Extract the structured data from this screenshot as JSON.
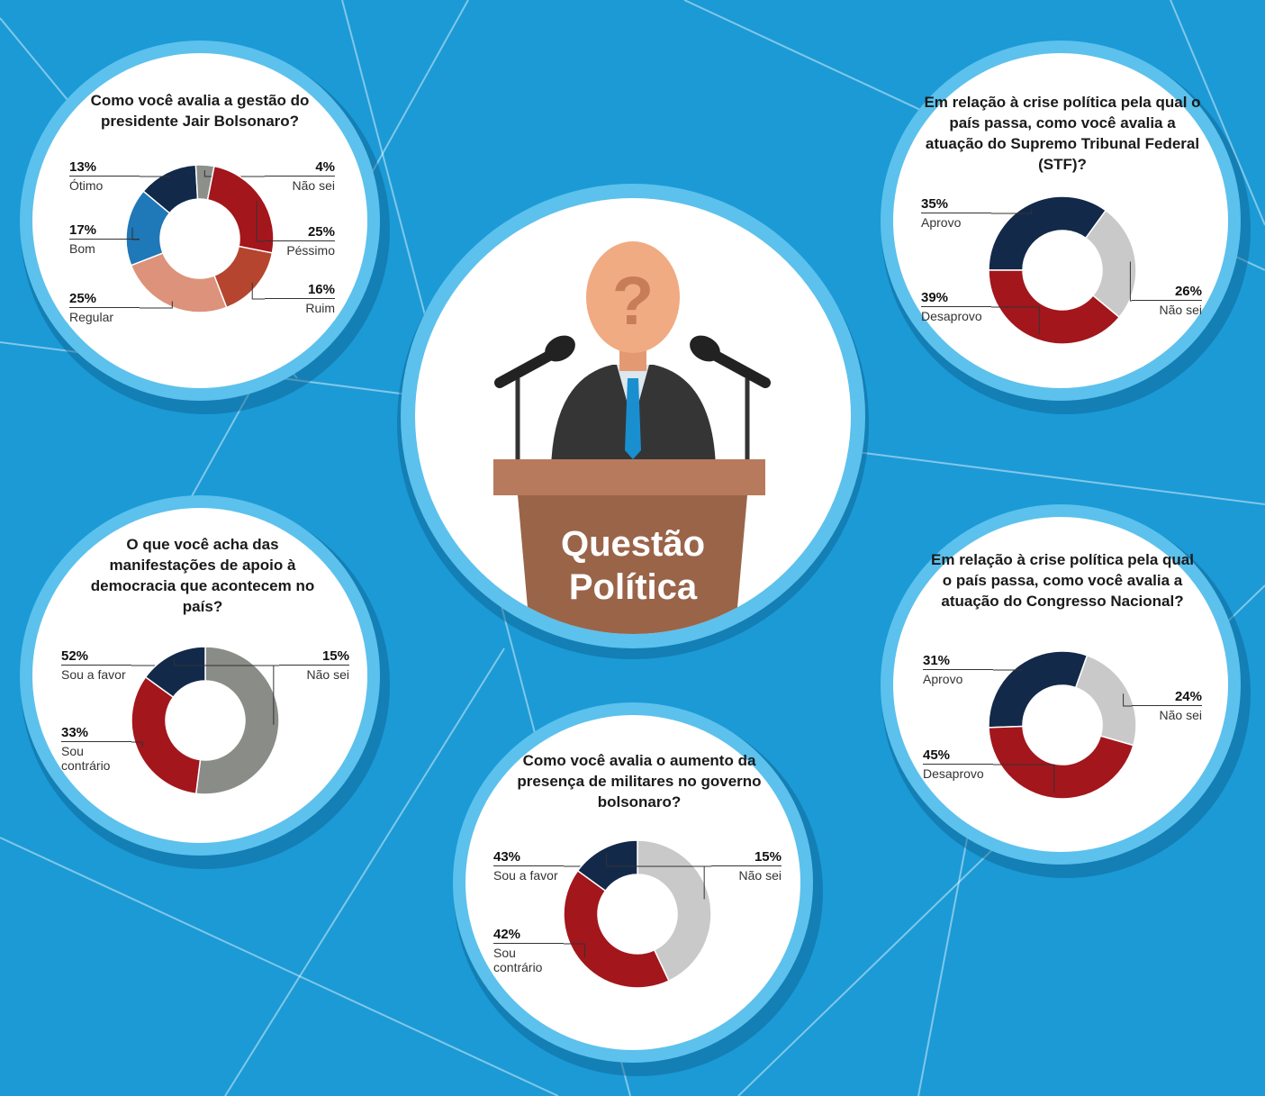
{
  "header": {
    "title": "Questão Política"
  },
  "chart_data": [
    {
      "type": "pie",
      "title": "Como você avalia a gestão do presidente Jair Bolsonaro?",
      "categories": [
        "Ótimo",
        "Não sei",
        "Péssimo",
        "Ruim",
        "Regular",
        "Bom"
      ],
      "values": [
        13,
        4,
        25,
        16,
        25,
        17
      ],
      "value_labels": [
        "13%",
        "4%",
        "25%",
        "16%",
        "25%",
        "17%"
      ],
      "colors": [
        "#12294a",
        "#8d8f8a",
        "#a3161c",
        "#b5452f",
        "#dd927b",
        "#1f78b8"
      ]
    },
    {
      "type": "pie",
      "title": "Em relação à crise política pela qual o país passa, como você avalia a atuação do Supremo Tribunal Federal (STF)?",
      "categories": [
        "Aprovo",
        "Não sei",
        "Desaprovo"
      ],
      "values": [
        35,
        26,
        39
      ],
      "value_labels": [
        "35%",
        "26%",
        "39%"
      ],
      "colors": [
        "#12294a",
        "#c9c9c9",
        "#a3161c"
      ]
    },
    {
      "type": "pie",
      "title": "O que você acha das manifestações de apoio à democracia que acontecem no país?",
      "categories": [
        "Sou a favor",
        "Sou contrário",
        "Não sei"
      ],
      "values": [
        52,
        33,
        15
      ],
      "value_labels": [
        "52%",
        "33%",
        "15%"
      ],
      "colors": [
        "#8a8c87",
        "#a3161c",
        "#12294a"
      ]
    },
    {
      "type": "pie",
      "title": "Como você avalia o aumento da presença de militares no governo bolsonaro?",
      "categories": [
        "Sou a favor",
        "Sou contrário",
        "Não sei"
      ],
      "values": [
        43,
        42,
        15
      ],
      "value_labels": [
        "43%",
        "42%",
        "15%"
      ],
      "colors": [
        "#c9c9c9",
        "#a3161c",
        "#12294a"
      ]
    },
    {
      "type": "pie",
      "title": "Em relação à crise política pela qual o país passa, como você avalia a atuação do Congresso Nacional?",
      "categories": [
        "Aprovo",
        "Não sei",
        "Desaprovo"
      ],
      "values": [
        31,
        24,
        45
      ],
      "value_labels": [
        "31%",
        "24%",
        "45%"
      ],
      "colors": [
        "#12294a",
        "#c9c9c9",
        "#a3161c"
      ]
    }
  ]
}
